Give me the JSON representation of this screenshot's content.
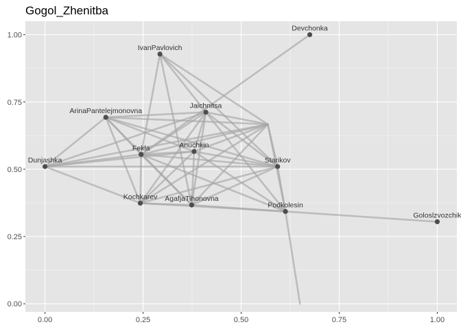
{
  "chart_data": {
    "type": "network",
    "title": "Gogol_Zhenitba",
    "xlabel": "",
    "ylabel": "",
    "xlim": [
      -0.05,
      1.05
    ],
    "ylim": [
      -0.03,
      1.05
    ],
    "x_ticks": [
      0.0,
      0.25,
      0.5,
      0.75,
      1.0
    ],
    "x_tick_labels": [
      "0.00",
      "0.25",
      "0.50",
      "0.75",
      "1.00"
    ],
    "y_ticks": [
      0.0,
      0.25,
      0.5,
      0.75,
      1.0
    ],
    "y_tick_labels": [
      "0.00",
      "0.25",
      "0.50",
      "0.75",
      "1.00"
    ],
    "grid": true,
    "colors": {
      "panel": "#e5e5e5",
      "grid_major": "#ffffff",
      "edge": "#a6a6a6",
      "node": "#4d4d4d"
    },
    "nodes": [
      {
        "id": "Devchonka",
        "label": "Devchonka",
        "x": 0.675,
        "y": 1.0
      },
      {
        "id": "IvanPavlovich",
        "label": "IvanPavlovich",
        "x": 0.293,
        "y": 0.928
      },
      {
        "id": "Jaichnitsa",
        "label": "Jaichnitsa",
        "x": 0.41,
        "y": 0.712
      },
      {
        "id": "ArinaPantelejmonovna",
        "label": "ArinaPantelejmonovna",
        "x": 0.155,
        "y": 0.693
      },
      {
        "id": "Fekla",
        "label": "Fekla",
        "x": 0.245,
        "y": 0.555
      },
      {
        "id": "Anuchkin",
        "label": "Anuchkin",
        "x": 0.38,
        "y": 0.566
      },
      {
        "id": "Dunjashka",
        "label": "Dunjashka",
        "x": 0.0,
        "y": 0.51
      },
      {
        "id": "Starikov",
        "label": "Starikov",
        "x": 0.593,
        "y": 0.51
      },
      {
        "id": "Kochkarev",
        "label": "Kochkarev",
        "x": 0.243,
        "y": 0.374
      },
      {
        "id": "AgafjaTihonovna",
        "label": "AgafjaTihonovna",
        "x": 0.374,
        "y": 0.367
      },
      {
        "id": "Podkolesin",
        "label": "Podkolesin",
        "x": 0.613,
        "y": 0.343
      },
      {
        "id": "Goloslzvozchik",
        "label": "Goloslzvozchik",
        "x": 1.0,
        "y": 0.305
      },
      {
        "id": "hub",
        "label": "",
        "x": 0.568,
        "y": 0.667
      },
      {
        "id": "bottom",
        "label": "",
        "x": 0.65,
        "y": 0.0
      }
    ],
    "edges": [
      [
        "Devchonka",
        "Fekla"
      ],
      [
        "IvanPavlovich",
        "Fekla"
      ],
      [
        "IvanPavlovich",
        "Jaichnitsa"
      ],
      [
        "IvanPavlovich",
        "AgafjaTihonovna"
      ],
      [
        "IvanPavlovich",
        "hub"
      ],
      [
        "IvanPavlovich",
        "Starikov"
      ],
      [
        "ArinaPantelejmonovna",
        "Jaichnitsa"
      ],
      [
        "ArinaPantelejmonovna",
        "hub"
      ],
      [
        "ArinaPantelejmonovna",
        "Dunjashka"
      ],
      [
        "ArinaPantelejmonovna",
        "Fekla"
      ],
      [
        "ArinaPantelejmonovna",
        "Anuchkin"
      ],
      [
        "ArinaPantelejmonovna",
        "Kochkarev"
      ],
      [
        "ArinaPantelejmonovna",
        "AgafjaTihonovna"
      ],
      [
        "ArinaPantelejmonovna",
        "Starikov"
      ],
      [
        "Jaichnitsa",
        "Fekla"
      ],
      [
        "Jaichnitsa",
        "Anuchkin"
      ],
      [
        "Jaichnitsa",
        "Dunjashka"
      ],
      [
        "Jaichnitsa",
        "Kochkarev"
      ],
      [
        "Jaichnitsa",
        "AgafjaTihonovna"
      ],
      [
        "Jaichnitsa",
        "Starikov"
      ],
      [
        "Jaichnitsa",
        "Podkolesin"
      ],
      [
        "Jaichnitsa",
        "hub"
      ],
      [
        "Dunjashka",
        "Fekla"
      ],
      [
        "Dunjashka",
        "Anuchkin"
      ],
      [
        "Dunjashka",
        "Kochkarev"
      ],
      [
        "Dunjashka",
        "Starikov"
      ],
      [
        "Dunjashka",
        "hub"
      ],
      [
        "Fekla",
        "Anuchkin"
      ],
      [
        "Fekla",
        "Starikov"
      ],
      [
        "Fekla",
        "AgafjaTihonovna"
      ],
      [
        "Fekla",
        "Kochkarev"
      ],
      [
        "Fekla",
        "hub"
      ],
      [
        "Fekla",
        "Podkolesin"
      ],
      [
        "Anuchkin",
        "Starikov"
      ],
      [
        "Anuchkin",
        "AgafjaTihonovna"
      ],
      [
        "Anuchkin",
        "Kochkarev"
      ],
      [
        "Anuchkin",
        "hub"
      ],
      [
        "Anuchkin",
        "Podkolesin"
      ],
      [
        "Kochkarev",
        "AgafjaTihonovna"
      ],
      [
        "Kochkarev",
        "Podkolesin"
      ],
      [
        "Kochkarev",
        "Starikov"
      ],
      [
        "Kochkarev",
        "hub"
      ],
      [
        "AgafjaTihonovna",
        "Podkolesin"
      ],
      [
        "AgafjaTihonovna",
        "hub"
      ],
      [
        "AgafjaTihonovna",
        "Starikov"
      ],
      [
        "Starikov",
        "Podkolesin"
      ],
      [
        "hub",
        "Podkolesin"
      ],
      [
        "hub",
        "Starikov"
      ],
      [
        "Podkolesin",
        "Goloslzvozchik"
      ],
      [
        "Podkolesin",
        "bottom"
      ]
    ]
  }
}
